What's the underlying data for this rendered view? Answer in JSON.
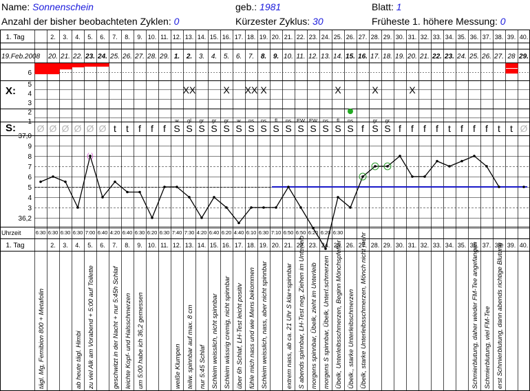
{
  "header": {
    "name_label": "Name:",
    "name_value": "Sonnenschein",
    "geb_label": "geb.:",
    "geb_value": "1981",
    "blatt_label": "Blatt:",
    "blatt_value": "1",
    "zyklen_label": "Anzahl der bisher beobachteten Zyklen:",
    "zyklen_value": "0",
    "kurz_label": "Kürzester Zyklus:",
    "kurz_value": "30",
    "frueh_label": "Früheste 1. höhere Messung:",
    "frueh_value": "0"
  },
  "row_labels": {
    "tag": "1. Tag",
    "x": "X:",
    "s": "S:",
    "temp_top": "37,0",
    "temp_low": "36,2",
    "uhrzeit": "Uhrzeit"
  },
  "day_numbers": [
    "2.",
    "3.",
    "4.",
    "5.",
    "6.",
    "7.",
    "8.",
    "9.",
    "10.",
    "11.",
    "12.",
    "13.",
    "14.",
    "15.",
    "16.",
    "17.",
    "18.",
    "19.",
    "20.",
    "21.",
    "22.",
    "23.",
    "24.",
    "25.",
    "26.",
    "27.",
    "28.",
    "29.",
    "30.",
    "31.",
    "32.",
    "33.",
    "34.",
    "35.",
    "36.",
    "37.",
    "38.",
    "39.",
    "40."
  ],
  "date_labels": [
    "19.Feb.2008",
    "20.",
    "21.",
    "22.",
    "23.",
    "24.",
    "25.",
    "26.",
    "27.",
    "28.",
    "29.",
    "1.",
    "2.",
    "3.",
    "4.",
    "5.",
    "6.",
    "7.",
    "8.",
    "9.",
    "10.",
    "11.",
    "12.",
    "13.",
    "14.",
    "15.",
    "16.",
    "17.",
    "18.",
    "19.",
    "20.",
    "21.",
    "22.",
    "23.",
    "24.",
    "25.",
    "26.",
    "27.",
    "28",
    "29."
  ],
  "bleeding_scale": [
    "6"
  ],
  "x_scale": [
    "5",
    "4",
    "3",
    "2",
    "1"
  ],
  "temp_scale": [
    "9",
    "8",
    "7",
    "6",
    "5",
    "4",
    "3"
  ],
  "mucus_symbols": [
    "Ø",
    "Ø",
    "Ø",
    "Ø",
    "Ø",
    "Ø",
    "t",
    "t",
    "f",
    "f",
    "f",
    "S",
    "S",
    "S",
    "S",
    "S",
    "S",
    "S",
    "S",
    "S",
    "S",
    "S",
    "S",
    "S",
    "S",
    "S",
    "f",
    "S",
    "S",
    "f",
    "f",
    "f",
    "f",
    "t",
    "f",
    "f",
    "f",
    "t",
    "t",
    "Ø"
  ],
  "mucus_notes": [
    "",
    "",
    "",
    "",
    "",
    "",
    "",
    "",
    "",
    "",
    "",
    "w",
    "gl",
    "gr",
    "gr",
    "gr",
    "w",
    "ns",
    "ns",
    "fl",
    "ns",
    "EW",
    "EW",
    "ns",
    "fl",
    "ns",
    "",
    "gr",
    "gr",
    "",
    "",
    "",
    "",
    "",
    "",
    "",
    "",
    "",
    "",
    ""
  ],
  "x_marks": [
    "",
    "",
    "",
    "",
    "",
    "",
    "",
    "",
    "",
    "",
    "",
    "",
    "XX",
    "",
    "",
    "X",
    "",
    "XX",
    "X",
    "",
    "",
    "",
    "",
    "",
    "X",
    "",
    "",
    "X",
    "",
    "",
    "X",
    "",
    "",
    "",
    "",
    "",
    "",
    "",
    "",
    ""
  ],
  "times": [
    "6:30",
    "6:30",
    "6:30",
    "6:30",
    "7:00",
    "6:40",
    "4:20",
    "6:40",
    "6:30",
    "6:20",
    "6:30",
    "7:40",
    "7:30",
    "4:20",
    "6:40",
    "6:20",
    "4:40",
    "6:10",
    "6:30",
    "7:10",
    "6:50",
    "6:50",
    "6:20",
    "6:20",
    "6:30",
    "",
    "",
    "",
    "",
    "",
    "",
    "",
    "",
    "",
    "",
    "",
    "",
    "",
    "",
    ""
  ],
  "temperatures": [
    36.55,
    36.6,
    36.55,
    36.3,
    36.8,
    36.4,
    36.55,
    36.45,
    36.45,
    36.2,
    36.5,
    36.5,
    36.4,
    36.2,
    36.4,
    36.3,
    36.15,
    36.3,
    36.3,
    36.3,
    36.5,
    36.3,
    36.1,
    35.9,
    36.4,
    36.3,
    36.6,
    36.7,
    36.7,
    36.8,
    36.6,
    36.6,
    36.75,
    36.7,
    36.75,
    36.8,
    36.7,
    36.5,
    null,
    36.5
  ],
  "coverline": 36.5,
  "coverline_label": "",
  "notes": [
    "tägl. Mg, Femibion 800 + Metafolin",
    "",
    "",
    "ab heute tägl. Himbi",
    "zu viel Alk am Vorabend + 5:00 auf Toilette",
    "",
    "geschwitzt in der Nacht + nur 5:45h Schlaf",
    "leichte Kopf- und Halsschmerzen",
    "um 5:00 habe ich 36,2 gemessen",
    "",
    "",
    "weiße Klumpen",
    "teilw. spinnbar auf max. 8 cm",
    "nur 5:45 Schlaf",
    "Schleim weisslich, nicht spinnbar",
    "Schleim wässrig cremig, nicht spinnbar",
    "über 6h Schlaf, LH-Test leicht positiv",
    "fühle mich nass und wie Mens bekommen",
    "Schleim weisslich, nass, aber nicht spinnbar",
    "",
    "extrem nass, ab ca. 21 Uhr S klar+spinnbar",
    "S abends spinnbar, LH-Test neg, Ziehen im Unterleib",
    "morgens spinnbar, Übelk, zieht im Unterleib",
    "morgens S spinnbar, Übelk, Unterl.schmerzen",
    "Übelk, Unterleibsschmerzen, Beginn Mönchspfeffer",
    "Übelk., starke Unterleibschmerzen",
    "Übelk, starke Unterleibsschmerzen, Mönch nicht mehr",
    "",
    "",
    "",
    "",
    "",
    "",
    "",
    "",
    "Schmierblutung, daher wieder FM-Tee angefangen",
    "Schmierblutung, viel FM-Tee",
    "erst Schmierblutung, dann abends richtige Blutung",
    ""
  ],
  "colors": {
    "bleeding": "#ff0000",
    "coverline": "#1818c8",
    "value_text": "#1a1adc",
    "circle": "#2a9a2a",
    "orange": "#f0a020"
  }
}
